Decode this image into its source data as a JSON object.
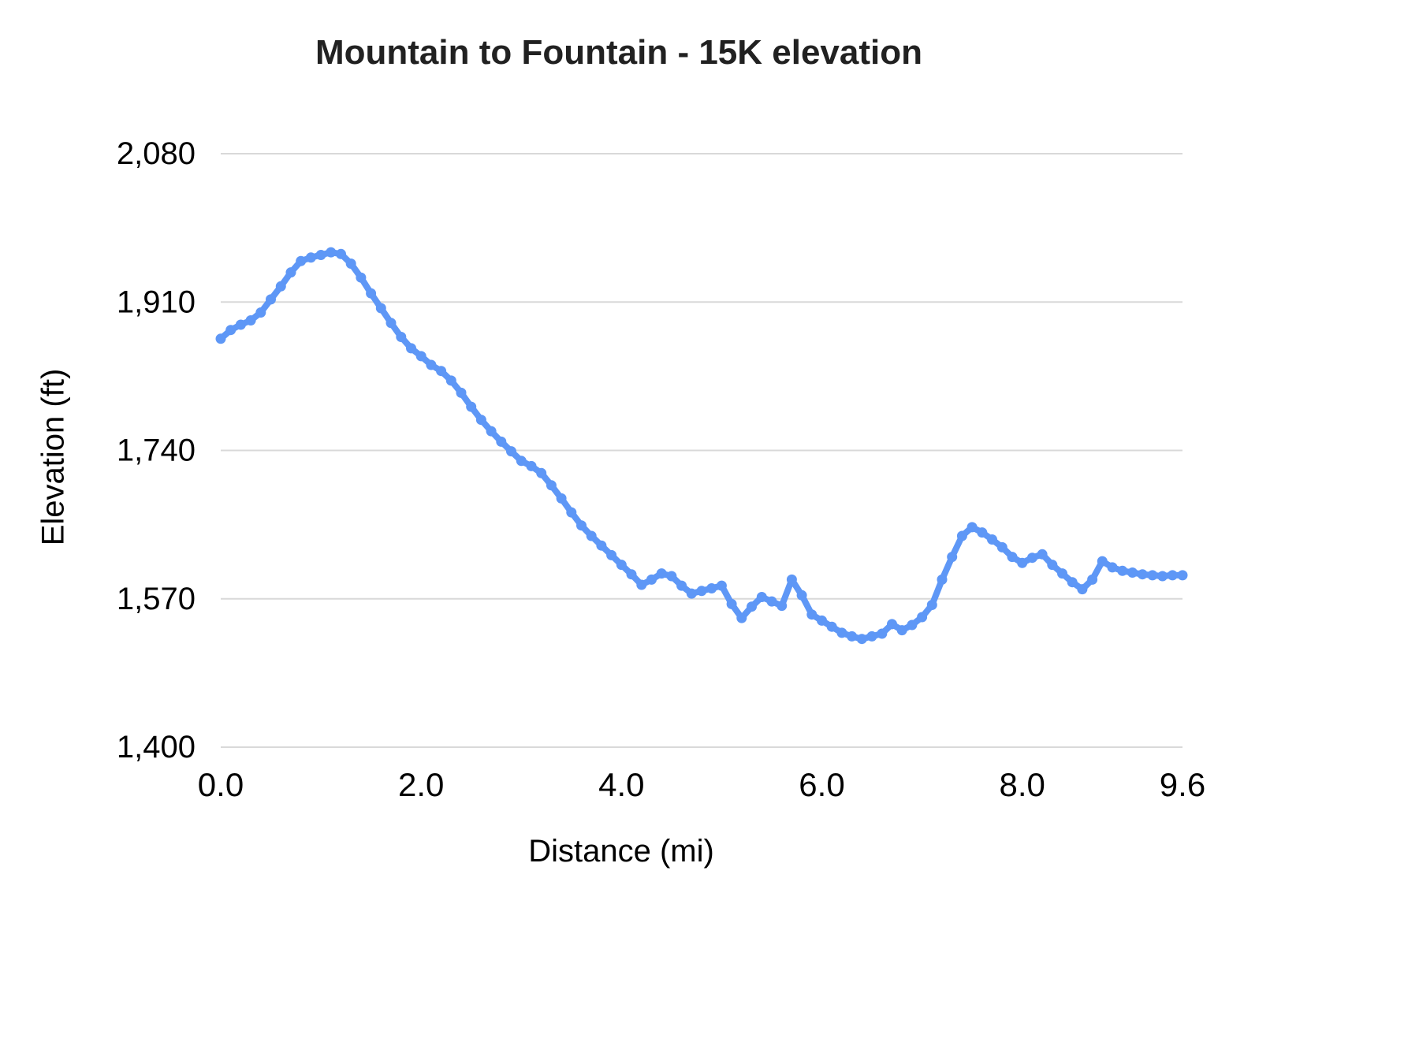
{
  "chart_data": {
    "type": "line",
    "title": "Mountain to Fountain - 15K elevation",
    "xlabel": "Distance (mi)",
    "ylabel": "Elevation (ft)",
    "xlim": [
      0,
      9.6
    ],
    "ylim": [
      1400,
      2080
    ],
    "grid": "horizontal-only",
    "legend": "none",
    "line_color": "#5e97f6",
    "gridline_color": "#d9d9d9",
    "x_tick_values": [
      0,
      2,
      4,
      6,
      8,
      9.6
    ],
    "x_tick_labels": [
      "0.0",
      "2.0",
      "4.0",
      "6.0",
      "8.0",
      "9.6"
    ],
    "y_tick_values": [
      1400,
      1570,
      1740,
      1910,
      2080
    ],
    "y_tick_labels": [
      "1,400",
      "1,570",
      "1,740",
      "1,910",
      "2,080"
    ],
    "x": [
      0.0,
      0.1,
      0.2,
      0.3,
      0.4,
      0.5,
      0.6,
      0.7,
      0.8,
      0.9,
      1.0,
      1.1,
      1.2,
      1.3,
      1.4,
      1.5,
      1.6,
      1.7,
      1.8,
      1.9,
      2.0,
      2.1,
      2.2,
      2.3,
      2.4,
      2.5,
      2.6,
      2.7,
      2.8,
      2.9,
      3.0,
      3.1,
      3.2,
      3.3,
      3.4,
      3.5,
      3.6,
      3.7,
      3.8,
      3.9,
      4.0,
      4.1,
      4.2,
      4.3,
      4.4,
      4.5,
      4.6,
      4.7,
      4.8,
      4.9,
      5.0,
      5.1,
      5.2,
      5.3,
      5.4,
      5.5,
      5.6,
      5.7,
      5.8,
      5.9,
      6.0,
      6.1,
      6.2,
      6.3,
      6.4,
      6.5,
      6.6,
      6.7,
      6.8,
      6.9,
      7.0,
      7.1,
      7.2,
      7.3,
      7.4,
      7.5,
      7.6,
      7.7,
      7.8,
      7.9,
      8.0,
      8.1,
      8.2,
      8.3,
      8.4,
      8.5,
      8.6,
      8.7,
      8.8,
      8.9,
      9.0,
      9.1,
      9.2,
      9.3,
      9.4,
      9.5,
      9.6
    ],
    "values": [
      1868,
      1878,
      1884,
      1889,
      1898,
      1913,
      1928,
      1944,
      1957,
      1961,
      1964,
      1967,
      1965,
      1954,
      1938,
      1920,
      1903,
      1886,
      1870,
      1857,
      1848,
      1838,
      1831,
      1820,
      1806,
      1790,
      1775,
      1762,
      1750,
      1739,
      1728,
      1722,
      1714,
      1700,
      1685,
      1669,
      1654,
      1642,
      1631,
      1620,
      1609,
      1598,
      1586,
      1592,
      1599,
      1596,
      1585,
      1576,
      1579,
      1582,
      1585,
      1564,
      1548,
      1561,
      1572,
      1567,
      1562,
      1592,
      1574,
      1552,
      1545,
      1538,
      1531,
      1527,
      1524,
      1527,
      1530,
      1541,
      1534,
      1540,
      1549,
      1563,
      1592,
      1618,
      1642,
      1652,
      1646,
      1638,
      1629,
      1618,
      1611,
      1617,
      1621,
      1609,
      1599,
      1589,
      1581,
      1592,
      1613,
      1606,
      1602,
      1600,
      1598,
      1597,
      1596,
      1597,
      1597
    ]
  }
}
